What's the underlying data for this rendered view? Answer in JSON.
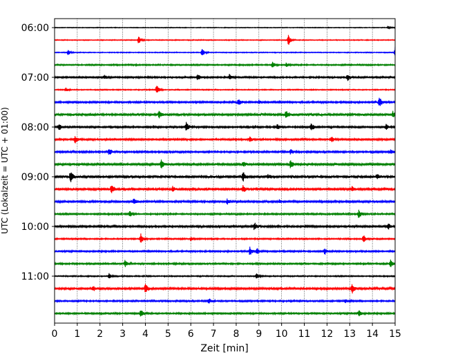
{
  "chart_data": {
    "type": "line",
    "title": "",
    "xlabel": "Zeit  [min]",
    "ylabel": "UTC (Lokalzeit = UTC + 01:00)",
    "xlim": [
      0,
      15
    ],
    "x_ticks": [
      0,
      1,
      2,
      3,
      4,
      5,
      6,
      7,
      8,
      9,
      10,
      11,
      12,
      13,
      14,
      15
    ],
    "x_grid": true,
    "y_tick_labels": [
      "06:00",
      "07:00",
      "08:00",
      "09:00",
      "10:00",
      "11:00"
    ],
    "row_interval_min": 15,
    "color_cycle": [
      "#000000",
      "#ff0000",
      "#0000ff",
      "#008000"
    ],
    "traces": [
      {
        "start": "06:00",
        "noise": 0.4,
        "events": [
          {
            "t": 14.7,
            "a": 2
          }
        ]
      },
      {
        "start": "06:15",
        "noise": 0.5,
        "events": [
          {
            "t": 3.7,
            "a": 6
          },
          {
            "t": 10.3,
            "a": 8
          }
        ]
      },
      {
        "start": "06:30",
        "noise": 0.5,
        "events": [
          {
            "t": 0.6,
            "a": 4
          },
          {
            "t": 6.5,
            "a": 6
          },
          {
            "t": 15.0,
            "a": 9
          }
        ]
      },
      {
        "start": "06:45",
        "noise": 0.8,
        "events": [
          {
            "t": 9.6,
            "a": 6
          },
          {
            "t": 10.2,
            "a": 3
          }
        ]
      },
      {
        "start": "07:00",
        "noise": 0.9,
        "events": [
          {
            "t": 2.2,
            "a": 3
          },
          {
            "t": 6.3,
            "a": 5
          },
          {
            "t": 7.7,
            "a": 4
          },
          {
            "t": 12.9,
            "a": 5
          }
        ]
      },
      {
        "start": "07:15",
        "noise": 0.6,
        "events": [
          {
            "t": 0.5,
            "a": 3
          },
          {
            "t": 4.5,
            "a": 8
          }
        ]
      },
      {
        "start": "07:30",
        "noise": 1.0,
        "events": [
          {
            "t": 8.1,
            "a": 6
          },
          {
            "t": 9.0,
            "a": 3
          },
          {
            "t": 14.3,
            "a": 8
          }
        ]
      },
      {
        "start": "07:45",
        "noise": 1.4,
        "events": [
          {
            "t": 4.6,
            "a": 6
          },
          {
            "t": 10.2,
            "a": 6
          },
          {
            "t": 14.9,
            "a": 4
          }
        ]
      },
      {
        "start": "08:00",
        "noise": 1.0,
        "events": [
          {
            "t": 0.2,
            "a": 5
          },
          {
            "t": 5.8,
            "a": 9
          },
          {
            "t": 9.8,
            "a": 4
          },
          {
            "t": 11.3,
            "a": 7
          },
          {
            "t": 14.6,
            "a": 4
          }
        ]
      },
      {
        "start": "08:15",
        "noise": 1.0,
        "events": [
          {
            "t": 0.9,
            "a": 6
          },
          {
            "t": 8.6,
            "a": 5
          },
          {
            "t": 12.2,
            "a": 4
          }
        ]
      },
      {
        "start": "08:30",
        "noise": 1.0,
        "events": [
          {
            "t": 2.4,
            "a": 6
          },
          {
            "t": 10.4,
            "a": 4
          },
          {
            "t": 14.8,
            "a": 3
          }
        ]
      },
      {
        "start": "08:45",
        "noise": 1.2,
        "events": [
          {
            "t": 4.7,
            "a": 7
          },
          {
            "t": 8.3,
            "a": 4
          },
          {
            "t": 10.4,
            "a": 7
          }
        ]
      },
      {
        "start": "09:00",
        "noise": 1.4,
        "events": [
          {
            "t": 0.7,
            "a": 8
          },
          {
            "t": 8.3,
            "a": 7
          },
          {
            "t": 9.4,
            "a": 3
          },
          {
            "t": 14.2,
            "a": 4
          }
        ]
      },
      {
        "start": "09:15",
        "noise": 1.3,
        "events": [
          {
            "t": 2.5,
            "a": 7
          },
          {
            "t": 5.2,
            "a": 4
          },
          {
            "t": 8.3,
            "a": 5
          },
          {
            "t": 13.1,
            "a": 4
          }
        ]
      },
      {
        "start": "09:30",
        "noise": 1.1,
        "events": [
          {
            "t": 3.5,
            "a": 5
          },
          {
            "t": 7.6,
            "a": 4
          },
          {
            "t": 9.9,
            "a": 3
          }
        ]
      },
      {
        "start": "09:45",
        "noise": 0.9,
        "events": [
          {
            "t": 3.3,
            "a": 5
          },
          {
            "t": 13.4,
            "a": 6
          }
        ]
      },
      {
        "start": "10:00",
        "noise": 1.1,
        "events": [
          {
            "t": 8.8,
            "a": 6
          },
          {
            "t": 14.7,
            "a": 4
          }
        ]
      },
      {
        "start": "10:15",
        "noise": 0.8,
        "events": [
          {
            "t": 3.8,
            "a": 7
          },
          {
            "t": 6.0,
            "a": 3
          },
          {
            "t": 13.6,
            "a": 6
          }
        ]
      },
      {
        "start": "10:30",
        "noise": 0.9,
        "events": [
          {
            "t": 8.6,
            "a": 6
          },
          {
            "t": 8.9,
            "a": 5
          },
          {
            "t": 11.9,
            "a": 5
          }
        ]
      },
      {
        "start": "10:45",
        "noise": 0.9,
        "events": [
          {
            "t": 3.1,
            "a": 5
          },
          {
            "t": 14.8,
            "a": 6
          }
        ]
      },
      {
        "start": "11:00",
        "noise": 0.7,
        "events": [
          {
            "t": 2.4,
            "a": 4
          },
          {
            "t": 8.9,
            "a": 4
          }
        ]
      },
      {
        "start": "11:15",
        "noise": 1.2,
        "events": [
          {
            "t": 1.7,
            "a": 4
          },
          {
            "t": 4.0,
            "a": 7
          },
          {
            "t": 13.1,
            "a": 7
          }
        ]
      },
      {
        "start": "11:30",
        "noise": 0.9,
        "events": [
          {
            "t": 6.8,
            "a": 4
          },
          {
            "t": 12.8,
            "a": 3
          }
        ]
      },
      {
        "start": "11:45",
        "noise": 0.9,
        "events": [
          {
            "t": 3.8,
            "a": 6
          },
          {
            "t": 13.4,
            "a": 6
          }
        ]
      }
    ]
  }
}
